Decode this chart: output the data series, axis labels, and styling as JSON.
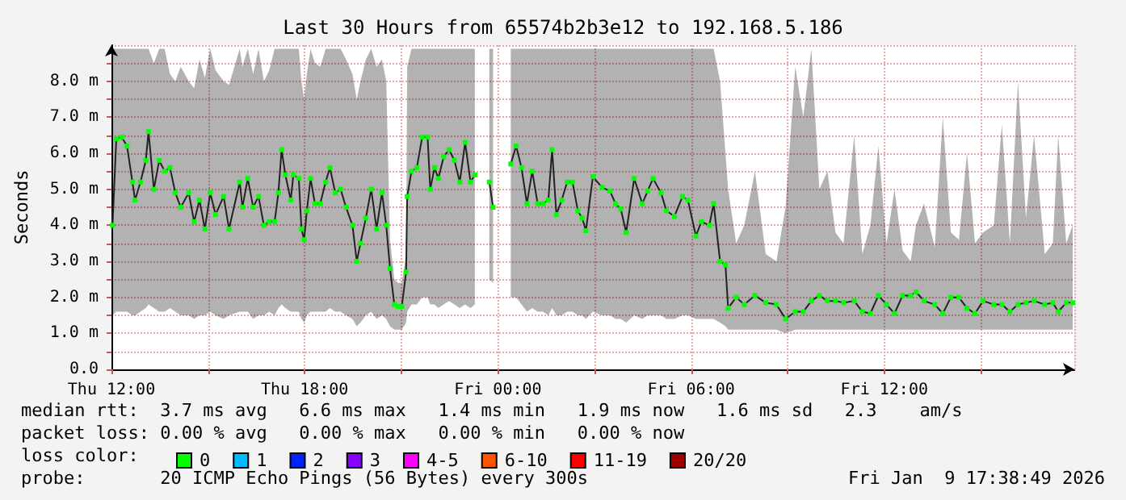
{
  "chart_data": {
    "type": "line",
    "title": "Last 30 Hours from 65574b2b3e12 to 192.168.5.186",
    "ylabel": "Seconds",
    "legend_title": "loss color:",
    "x": [
      "2026-01-08T12:02",
      "2026-01-08T12:09",
      "2026-01-08T12:19",
      "2026-01-08T12:29",
      "2026-01-08T12:39",
      "2026-01-08T12:44",
      "2026-01-08T12:54",
      "2026-01-08T13:04",
      "2026-01-08T13:09",
      "2026-01-08T13:19",
      "2026-01-08T13:29",
      "2026-01-08T13:39",
      "2026-01-08T13:49",
      "2026-01-08T13:59",
      "2026-01-08T14:09",
      "2026-01-08T14:24",
      "2026-01-08T14:34",
      "2026-01-08T14:44",
      "2026-01-08T14:54",
      "2026-01-08T15:04",
      "2026-01-08T15:14",
      "2026-01-08T15:29",
      "2026-01-08T15:39",
      "2026-01-08T15:59",
      "2026-01-08T16:04",
      "2026-01-08T16:14",
      "2026-01-08T16:24",
      "2026-01-08T16:34",
      "2026-01-08T16:44",
      "2026-01-08T16:54",
      "2026-01-08T17:04",
      "2026-01-08T17:11",
      "2026-01-08T17:17",
      "2026-01-08T17:24",
      "2026-01-08T17:34",
      "2026-01-08T17:39",
      "2026-01-08T17:49",
      "2026-01-08T17:54",
      "2026-01-08T17:59",
      "2026-01-08T18:04",
      "2026-01-08T18:11",
      "2026-01-08T18:19",
      "2026-01-08T18:29",
      "2026-01-08T18:39",
      "2026-01-08T18:47",
      "2026-01-08T18:57",
      "2026-01-08T19:07",
      "2026-01-08T19:17",
      "2026-01-08T19:29",
      "2026-01-08T19:37",
      "2026-01-08T19:44",
      "2026-01-08T19:54",
      "2026-01-08T20:04",
      "2026-01-08T20:14",
      "2026-01-08T20:24",
      "2026-01-08T20:32",
      "2026-01-08T20:39",
      "2026-01-08T20:47",
      "2026-01-08T20:54",
      "2026-01-08T21:01",
      "2026-01-08T21:09",
      "2026-01-08T21:11",
      "2026-01-08T21:19",
      "2026-01-08T21:29",
      "2026-01-08T21:39",
      "2026-01-08T21:49",
      "2026-01-08T21:54",
      "2026-01-08T22:02",
      "2026-01-08T22:09",
      "2026-01-08T22:19",
      "2026-01-08T22:29",
      "2026-01-08T22:39",
      "2026-01-08T22:49",
      "2026-01-08T22:59",
      "2026-01-08T23:09",
      "2026-01-08T23:17",
      "2026-01-08T23:30",
      "2026-01-08T23:44",
      "2026-01-08T23:51",
      "2026-01-09T00:12",
      "2026-01-09T00:24",
      "2026-01-09T00:34",
      "2026-01-09T00:44",
      "2026-01-09T00:54",
      "2026-01-09T01:04",
      "2026-01-09T01:14",
      "2026-01-09T01:24",
      "2026-01-09T01:34",
      "2026-01-09T01:41",
      "2026-01-09T01:49",
      "2026-01-09T01:59",
      "2026-01-09T02:09",
      "2026-01-09T02:19",
      "2026-01-09T02:29",
      "2026-01-09T02:37",
      "2026-01-09T02:44",
      "2026-01-09T02:57",
      "2026-01-09T03:14",
      "2026-01-09T03:29",
      "2026-01-09T03:39",
      "2026-01-09T03:49",
      "2026-01-09T03:59",
      "2026-01-09T04:14",
      "2026-01-09T04:29",
      "2026-01-09T04:39",
      "2026-01-09T04:49",
      "2026-01-09T05:04",
      "2026-01-09T05:14",
      "2026-01-09T05:29",
      "2026-01-09T05:44",
      "2026-01-09T05:54",
      "2026-01-09T06:09",
      "2026-01-09T06:19",
      "2026-01-09T06:34",
      "2026-01-09T06:42",
      "2026-01-09T06:54",
      "2026-01-09T07:04",
      "2026-01-09T07:09",
      "2026-01-09T07:24",
      "2026-01-09T07:39",
      "2026-01-09T07:59",
      "2026-01-09T08:19",
      "2026-01-09T08:39",
      "2026-01-09T08:56",
      "2026-01-09T09:14",
      "2026-01-09T09:29",
      "2026-01-09T09:44",
      "2026-01-09T09:59",
      "2026-01-09T10:14",
      "2026-01-09T10:29",
      "2026-01-09T10:44",
      "2026-01-09T11:04",
      "2026-01-09T11:19",
      "2026-01-09T11:34",
      "2026-01-09T11:49",
      "2026-01-09T12:04",
      "2026-01-09T12:19",
      "2026-01-09T12:34",
      "2026-01-09T12:49",
      "2026-01-09T12:59",
      "2026-01-09T13:14",
      "2026-01-09T13:34",
      "2026-01-09T13:49",
      "2026-01-09T14:04",
      "2026-01-09T14:19",
      "2026-01-09T14:34",
      "2026-01-09T14:49",
      "2026-01-09T15:04",
      "2026-01-09T15:24",
      "2026-01-09T15:39",
      "2026-01-09T15:54",
      "2026-01-09T16:09",
      "2026-01-09T16:24",
      "2026-01-09T16:39",
      "2026-01-09T16:59",
      "2026-01-09T17:14",
      "2026-01-09T17:24",
      "2026-01-09T17:39",
      "2026-01-09T17:51"
    ],
    "series": [
      {
        "name": "0",
        "color": "#00ff00",
        "values": [
          4.0,
          6.4,
          6.45,
          6.2,
          5.2,
          4.7,
          5.2,
          5.8,
          6.6,
          5.0,
          5.8,
          5.5,
          5.6,
          4.9,
          4.5,
          4.9,
          4.1,
          4.7,
          3.9,
          4.9,
          4.3,
          4.8,
          3.9,
          5.2,
          4.5,
          5.3,
          4.5,
          4.8,
          4.0,
          4.1,
          4.1,
          4.9,
          6.1,
          5.4,
          4.7,
          5.4,
          5.3,
          3.9,
          3.6,
          4.4,
          5.3,
          4.6,
          4.6,
          5.2,
          5.6,
          4.9,
          5.0,
          4.5,
          4.0,
          3.0,
          3.5,
          4.2,
          5.0,
          3.9,
          4.9,
          4.0,
          2.8,
          1.8,
          1.75,
          1.75,
          2.7,
          4.8,
          5.5,
          5.6,
          6.45,
          6.45,
          5.0,
          5.6,
          5.3,
          5.9,
          6.1,
          5.8,
          5.2,
          6.3,
          5.2,
          5.4,
          null,
          5.2,
          4.5,
          null,
          5.7,
          6.2,
          5.6,
          4.6,
          5.5,
          4.6,
          4.6,
          4.7,
          6.1,
          4.3,
          4.7,
          5.2,
          5.2,
          4.4,
          4.2,
          3.85,
          5.35,
          5.05,
          4.95,
          4.6,
          4.45,
          3.8,
          5.3,
          4.6,
          4.95,
          5.3,
          4.9,
          4.4,
          4.25,
          4.8,
          4.7,
          3.7,
          4.1,
          4.0,
          4.6,
          3.0,
          2.9,
          1.7,
          2.0,
          1.8,
          2.05,
          1.85,
          1.8,
          1.4,
          1.6,
          1.6,
          1.9,
          2.05,
          1.9,
          1.9,
          1.85,
          1.9,
          1.6,
          1.55,
          2.05,
          1.8,
          1.55,
          2.05,
          2.05,
          2.15,
          1.9,
          1.8,
          1.55,
          2.0,
          2.0,
          1.7,
          1.55,
          1.9,
          1.8,
          1.8,
          1.6,
          1.8,
          1.85,
          1.9,
          1.8,
          1.85,
          1.6,
          1.85,
          1.85
        ],
        "lower": [
          1.5,
          1.6,
          1.6,
          1.6,
          1.5,
          1.5,
          1.6,
          1.7,
          1.8,
          1.7,
          1.6,
          1.6,
          1.7,
          1.6,
          1.5,
          1.5,
          1.4,
          1.5,
          1.5,
          1.6,
          1.5,
          1.4,
          1.5,
          1.6,
          1.6,
          1.6,
          1.4,
          1.5,
          1.5,
          1.6,
          1.5,
          1.7,
          1.8,
          1.7,
          1.6,
          1.6,
          1.6,
          1.4,
          1.3,
          1.5,
          1.6,
          1.6,
          1.6,
          1.6,
          1.7,
          1.6,
          1.6,
          1.5,
          1.4,
          1.2,
          1.3,
          1.5,
          1.6,
          1.4,
          1.5,
          1.4,
          1.2,
          1.1,
          1.1,
          1.1,
          1.3,
          1.6,
          1.8,
          1.8,
          2.0,
          2.0,
          1.8,
          1.8,
          1.7,
          1.8,
          1.9,
          1.8,
          1.7,
          1.8,
          1.7,
          1.8,
          null,
          2.5,
          2.4,
          null,
          2.0,
          2.0,
          1.8,
          1.6,
          1.7,
          1.6,
          1.6,
          1.5,
          1.7,
          1.5,
          1.5,
          1.6,
          1.6,
          1.5,
          1.5,
          1.4,
          1.6,
          1.5,
          1.5,
          1.4,
          1.4,
          1.3,
          1.5,
          1.4,
          1.5,
          1.5,
          1.5,
          1.4,
          1.4,
          1.5,
          1.5,
          1.4,
          1.4,
          1.4,
          1.4,
          1.3,
          1.2,
          1.1,
          1.1,
          1.1,
          1.1,
          1.1,
          1.1,
          1.0,
          1.1,
          1.1,
          1.1,
          1.1,
          1.1,
          1.1,
          1.1,
          1.1,
          1.1,
          1.1,
          1.1,
          1.1,
          1.1,
          1.1,
          1.1,
          1.1,
          1.1,
          1.1,
          1.1,
          1.1,
          1.1,
          1.1,
          1.1,
          1.1,
          1.1,
          1.1,
          1.1,
          1.1,
          1.1,
          1.1,
          1.1,
          1.1,
          1.1,
          1.1,
          1.1
        ],
        "upper": [
          8.9,
          8.9,
          8.9,
          8.9,
          8.9,
          8.9,
          8.9,
          8.9,
          8.9,
          8.5,
          8.9,
          8.9,
          8.2,
          8.0,
          8.4,
          8.0,
          7.8,
          8.6,
          8.1,
          8.9,
          8.3,
          8.0,
          7.9,
          8.9,
          8.4,
          8.9,
          8.2,
          8.9,
          8.0,
          8.3,
          8.9,
          8.9,
          8.9,
          8.9,
          8.9,
          8.9,
          8.9,
          8.0,
          7.5,
          8.2,
          8.9,
          8.5,
          8.4,
          8.9,
          8.9,
          8.9,
          8.9,
          8.6,
          8.2,
          7.5,
          8.0,
          8.6,
          8.9,
          8.4,
          8.6,
          8.0,
          3.6,
          2.5,
          2.4,
          2.4,
          3.2,
          8.4,
          8.9,
          8.9,
          8.9,
          8.9,
          8.9,
          8.9,
          8.9,
          8.9,
          8.9,
          8.9,
          8.9,
          8.9,
          8.9,
          8.9,
          null,
          8.9,
          8.9,
          null,
          8.9,
          8.9,
          8.9,
          8.9,
          8.9,
          8.9,
          8.9,
          8.9,
          8.9,
          8.9,
          8.9,
          8.9,
          8.9,
          8.9,
          8.9,
          8.9,
          8.9,
          8.9,
          8.9,
          8.9,
          8.9,
          8.9,
          8.9,
          8.9,
          8.9,
          8.9,
          8.9,
          8.9,
          8.9,
          8.9,
          8.9,
          8.9,
          8.9,
          8.9,
          8.9,
          8.0,
          6.0,
          5.0,
          3.5,
          4.0,
          5.5,
          3.2,
          3.0,
          4.5,
          8.4,
          7.0,
          8.9,
          5.0,
          5.5,
          3.8,
          3.5,
          6.5,
          3.2,
          4.0,
          6.2,
          3.5,
          5.0,
          3.3,
          3.0,
          4.0,
          4.6,
          3.4,
          7.0,
          3.8,
          3.6,
          6.0,
          3.5,
          3.8,
          4.0,
          6.8,
          3.5,
          8.0,
          4.2,
          6.5,
          3.2,
          3.5,
          6.5,
          3.5,
          4.0
        ]
      },
      {
        "name": "1",
        "color": "#00bbff",
        "values": [
          null,
          null,
          null,
          null,
          null,
          null,
          null,
          null,
          null,
          null,
          null,
          null,
          null,
          null,
          null,
          null,
          null,
          null,
          null,
          null,
          null,
          null,
          null,
          null,
          null,
          null,
          null,
          null,
          null,
          null,
          null,
          null,
          null,
          null,
          null,
          null,
          null,
          null,
          null,
          null,
          null,
          null,
          null,
          null,
          null,
          null,
          null,
          null,
          null,
          null,
          null,
          null,
          null,
          null,
          null,
          null,
          null,
          null,
          null,
          null,
          null,
          null,
          null,
          null,
          null,
          null,
          null,
          null,
          null,
          null,
          null,
          null,
          null,
          null,
          null,
          null,
          null,
          null,
          null,
          null,
          null,
          null,
          null,
          null,
          null,
          null,
          null,
          null,
          null,
          null,
          null,
          null,
          null,
          null,
          null,
          null,
          null,
          null,
          null,
          null,
          null,
          null,
          null,
          null,
          null,
          null,
          null,
          null,
          null,
          null,
          null,
          null,
          null,
          null,
          null,
          null,
          null,
          null,
          null,
          null,
          null,
          null,
          null,
          null,
          null,
          null,
          null,
          null,
          null,
          null,
          null,
          null,
          null,
          null,
          null,
          null,
          null,
          null,
          null,
          null,
          null,
          null,
          null,
          null,
          null,
          null,
          null,
          null,
          null,
          null,
          null,
          null,
          null,
          null,
          null,
          null,
          null,
          null,
          null
        ]
      },
      {
        "name": "2",
        "color": "#0022ff",
        "values": [
          null,
          null,
          null,
          null,
          null,
          null,
          null,
          null,
          null,
          null,
          null,
          null,
          null,
          null,
          null,
          null,
          null,
          null,
          null,
          null,
          null,
          null,
          null,
          null,
          null,
          null,
          null,
          null,
          null,
          null,
          null,
          null,
          null,
          null,
          null,
          null,
          null,
          null,
          null,
          null,
          null,
          null,
          null,
          null,
          null,
          null,
          null,
          null,
          null,
          null,
          null,
          null,
          null,
          null,
          null,
          null,
          null,
          null,
          null,
          null,
          null,
          null,
          null,
          null,
          null,
          null,
          null,
          null,
          null,
          null,
          null,
          null,
          null,
          null,
          null,
          null,
          null,
          null,
          null,
          null,
          null,
          null,
          null,
          null,
          null,
          null,
          null,
          null,
          null,
          null,
          null,
          null,
          null,
          null,
          null,
          null,
          null,
          null,
          null,
          null,
          null,
          null,
          null,
          null,
          null,
          null,
          null,
          null,
          null,
          null,
          null,
          null,
          null,
          null,
          null,
          null,
          null,
          null,
          null,
          null,
          null,
          null,
          null,
          null,
          null,
          null,
          null,
          null,
          null,
          null,
          null,
          null,
          null,
          null,
          null,
          null,
          null,
          null,
          null,
          null,
          null,
          null,
          null,
          null,
          null,
          null,
          null,
          null,
          null,
          null,
          null,
          null,
          null,
          null,
          null,
          null,
          null,
          null,
          null
        ]
      },
      {
        "name": "3",
        "color": "#8a00ff",
        "values": [
          null,
          null,
          null,
          null,
          null,
          null,
          null,
          null,
          null,
          null,
          null,
          null,
          null,
          null,
          null,
          null,
          null,
          null,
          null,
          null,
          null,
          null,
          null,
          null,
          null,
          null,
          null,
          null,
          null,
          null,
          null,
          null,
          null,
          null,
          null,
          null,
          null,
          null,
          null,
          null,
          null,
          null,
          null,
          null,
          null,
          null,
          null,
          null,
          null,
          null,
          null,
          null,
          null,
          null,
          null,
          null,
          null,
          null,
          null,
          null,
          null,
          null,
          null,
          null,
          null,
          null,
          null,
          null,
          null,
          null,
          null,
          null,
          null,
          null,
          null,
          null,
          null,
          null,
          null,
          null,
          null,
          null,
          null,
          null,
          null,
          null,
          null,
          null,
          null,
          null,
          null,
          null,
          null,
          null,
          null,
          null,
          null,
          null,
          null,
          null,
          null,
          null,
          null,
          null,
          null,
          null,
          null,
          null,
          null,
          null,
          null,
          null,
          null,
          null,
          null,
          null,
          null,
          null,
          null,
          null,
          null,
          null,
          null,
          null,
          null,
          null,
          null,
          null,
          null,
          null,
          null,
          null,
          null,
          null,
          null,
          null,
          null,
          null,
          null,
          null,
          null,
          null,
          null,
          null,
          null,
          null,
          null,
          null,
          null,
          null,
          null,
          null,
          null,
          null,
          null,
          null,
          null,
          null,
          null
        ]
      },
      {
        "name": "4-5",
        "color": "#ff00ff",
        "values": [
          null,
          null,
          null,
          null,
          null,
          null,
          null,
          null,
          null,
          null,
          null,
          null,
          null,
          null,
          null,
          null,
          null,
          null,
          null,
          null,
          null,
          null,
          null,
          null,
          null,
          null,
          null,
          null,
          null,
          null,
          null,
          null,
          null,
          null,
          null,
          null,
          null,
          null,
          null,
          null,
          null,
          null,
          null,
          null,
          null,
          null,
          null,
          null,
          null,
          null,
          null,
          null,
          null,
          null,
          null,
          null,
          null,
          null,
          null,
          null,
          null,
          null,
          null,
          null,
          null,
          null,
          null,
          null,
          null,
          null,
          null,
          null,
          null,
          null,
          null,
          null,
          null,
          null,
          null,
          null,
          null,
          null,
          null,
          null,
          null,
          null,
          null,
          null,
          null,
          null,
          null,
          null,
          null,
          null,
          null,
          null,
          null,
          null,
          null,
          null,
          null,
          null,
          null,
          null,
          null,
          null,
          null,
          null,
          null,
          null,
          null,
          null,
          null,
          null,
          null,
          null,
          null,
          null,
          null,
          null,
          null,
          null,
          null,
          null,
          null,
          null,
          null,
          null,
          null,
          null,
          null,
          null,
          null,
          null,
          null,
          null,
          null,
          null,
          null,
          null,
          null,
          null,
          null,
          null,
          null,
          null,
          null,
          null,
          null,
          null,
          null,
          null,
          null,
          null,
          null,
          null,
          null,
          null,
          null
        ]
      },
      {
        "name": "6-10",
        "color": "#ff5500",
        "values": [
          null,
          null,
          null,
          null,
          null,
          null,
          null,
          null,
          null,
          null,
          null,
          null,
          null,
          null,
          null,
          null,
          null,
          null,
          null,
          null,
          null,
          null,
          null,
          null,
          null,
          null,
          null,
          null,
          null,
          null,
          null,
          null,
          null,
          null,
          null,
          null,
          null,
          null,
          null,
          null,
          null,
          null,
          null,
          null,
          null,
          null,
          null,
          null,
          null,
          null,
          null,
          null,
          null,
          null,
          null,
          null,
          null,
          null,
          null,
          null,
          null,
          null,
          null,
          null,
          null,
          null,
          null,
          null,
          null,
          null,
          null,
          null,
          null,
          null,
          null,
          null,
          null,
          null,
          null,
          null,
          null,
          null,
          null,
          null,
          null,
          null,
          null,
          null,
          null,
          null,
          null,
          null,
          null,
          null,
          null,
          null,
          null,
          null,
          null,
          null,
          null,
          null,
          null,
          null,
          null,
          null,
          null,
          null,
          null,
          null,
          null,
          null,
          null,
          null,
          null,
          null,
          null,
          null,
          null,
          null,
          null,
          null,
          null,
          null,
          null,
          null,
          null,
          null,
          null,
          null,
          null,
          null,
          null,
          null,
          null,
          null,
          null,
          null,
          null,
          null,
          null,
          null,
          null,
          null,
          null,
          null,
          null,
          null,
          null,
          null,
          null,
          null,
          null,
          null,
          null,
          null,
          null,
          null,
          null
        ]
      },
      {
        "name": "11-19",
        "color": "#ff0000",
        "values": [
          null,
          null,
          null,
          null,
          null,
          null,
          null,
          null,
          null,
          null,
          null,
          null,
          null,
          null,
          null,
          null,
          null,
          null,
          null,
          null,
          null,
          null,
          null,
          null,
          null,
          null,
          null,
          null,
          null,
          null,
          null,
          null,
          null,
          null,
          null,
          null,
          null,
          null,
          null,
          null,
          null,
          null,
          null,
          null,
          null,
          null,
          null,
          null,
          null,
          null,
          null,
          null,
          null,
          null,
          null,
          null,
          null,
          null,
          null,
          null,
          null,
          null,
          null,
          null,
          null,
          null,
          null,
          null,
          null,
          null,
          null,
          null,
          null,
          null,
          null,
          null,
          null,
          null,
          null,
          null,
          null,
          null,
          null,
          null,
          null,
          null,
          null,
          null,
          null,
          null,
          null,
          null,
          null,
          null,
          null,
          null,
          null,
          null,
          null,
          null,
          null,
          null,
          null,
          null,
          null,
          null,
          null,
          null,
          null,
          null,
          null,
          null,
          null,
          null,
          null,
          null,
          null,
          null,
          null,
          null,
          null,
          null,
          null,
          null,
          null,
          null,
          null,
          null,
          null,
          null,
          null,
          null,
          null,
          null,
          null,
          null,
          null,
          null,
          null,
          null,
          null,
          null,
          null,
          null,
          null,
          null,
          null,
          null,
          null,
          null,
          null,
          null,
          null,
          null,
          null,
          null,
          null,
          null,
          null
        ]
      },
      {
        "name": "20/20",
        "color": "#a10000",
        "values": [
          null,
          null,
          null,
          null,
          null,
          null,
          null,
          null,
          null,
          null,
          null,
          null,
          null,
          null,
          null,
          null,
          null,
          null,
          null,
          null,
          null,
          null,
          null,
          null,
          null,
          null,
          null,
          null,
          null,
          null,
          null,
          null,
          null,
          null,
          null,
          null,
          null,
          null,
          null,
          null,
          null,
          null,
          null,
          null,
          null,
          null,
          null,
          null,
          null,
          null,
          null,
          null,
          null,
          null,
          null,
          null,
          null,
          null,
          null,
          null,
          null,
          null,
          null,
          null,
          null,
          null,
          null,
          null,
          null,
          null,
          null,
          null,
          null,
          null,
          null,
          null,
          null,
          null,
          null,
          null,
          null,
          null,
          null,
          null,
          null,
          null,
          null,
          null,
          null,
          null,
          null,
          null,
          null,
          null,
          null,
          null,
          null,
          null,
          null,
          null,
          null,
          null,
          null,
          null,
          null,
          null,
          null,
          null,
          null,
          null,
          null,
          null,
          null,
          null,
          null,
          null,
          null,
          null,
          null,
          null,
          null,
          null,
          null,
          null,
          null,
          null,
          null,
          null,
          null,
          null,
          null,
          null,
          null,
          null,
          null,
          null,
          null,
          null,
          null,
          null,
          null,
          null,
          null,
          null,
          null,
          null,
          null,
          null,
          null,
          null,
          null,
          null,
          null,
          null,
          null,
          null,
          null,
          null,
          null
        ]
      }
    ],
    "xlim": [
      "2026-01-08T12:00",
      "2026-01-09T17:54"
    ],
    "xticks": [
      {
        "value": "2026-01-08T12:00",
        "label": "Thu 12:00"
      },
      {
        "value": "2026-01-08T15:00",
        "label": null
      },
      {
        "value": "2026-01-08T18:00",
        "label": "Thu 18:00"
      },
      {
        "value": "2026-01-08T21:00",
        "label": null
      },
      {
        "value": "2026-01-09T00:00",
        "label": "Fri 00:00"
      },
      {
        "value": "2026-01-09T03:00",
        "label": null
      },
      {
        "value": "2026-01-09T06:00",
        "label": "Fri 06:00"
      },
      {
        "value": "2026-01-09T09:00",
        "label": null
      },
      {
        "value": "2026-01-09T12:00",
        "label": "Fri 12:00"
      },
      {
        "value": "2026-01-09T15:00",
        "label": null
      }
    ],
    "ylim": [
      0,
      9
    ],
    "yticks": [
      {
        "value": 0,
        "label": "0.0"
      },
      {
        "value": 0.5,
        "label": null
      },
      {
        "value": 1,
        "label": "1.0 m"
      },
      {
        "value": 1.5,
        "label": null
      },
      {
        "value": 2,
        "label": "2.0 m"
      },
      {
        "value": 2.5,
        "label": null
      },
      {
        "value": 3,
        "label": "3.0 m"
      },
      {
        "value": 3.5,
        "label": null
      },
      {
        "value": 4,
        "label": "4.0 m"
      },
      {
        "value": 4.5,
        "label": null
      },
      {
        "value": 5,
        "label": "5.0 m"
      },
      {
        "value": 5.5,
        "label": null
      },
      {
        "value": 6,
        "label": "6.0 m"
      },
      {
        "value": 6.5,
        "label": null
      },
      {
        "value": 7,
        "label": "7.0 m"
      },
      {
        "value": 7.5,
        "label": null
      },
      {
        "value": 8,
        "label": "8.0 m"
      },
      {
        "value": 8.5,
        "label": null
      }
    ],
    "grid": true,
    "legend": "bottom",
    "marker": "square",
    "annotations": [
      "median rtt:  3.7 ms avg   6.6 ms max   1.4 ms min   1.9 ms now   1.6 ms sd   2.3    am/s",
      "packet loss: 0.00 % avg   0.00 % max   0.00 % min   0.00 % now",
      "probe:       20 ICMP Echo Pings (56 Bytes) every 300s",
      "Fri Jan  9 17:38:49 2026"
    ]
  }
}
